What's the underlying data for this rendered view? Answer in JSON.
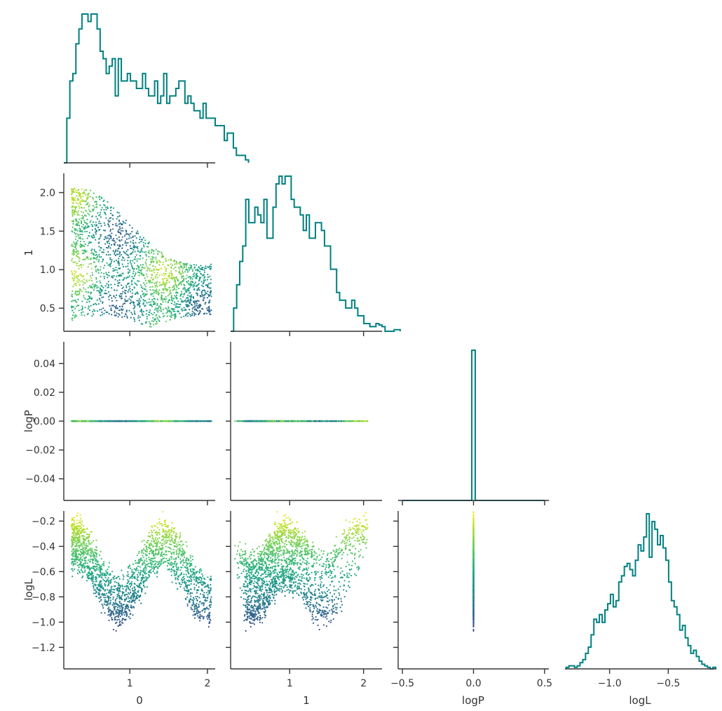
{
  "chart_data": {
    "type": "pairplot",
    "title": "",
    "variables": [
      "0",
      "1",
      "logP",
      "logL"
    ],
    "hist_color": "#008080",
    "scatter_colormap": "viridis",
    "color_variable": "logL",
    "ranges": {
      "0": [
        0.15,
        2.1
      ],
      "1": [
        0.2,
        2.25
      ],
      "logP": [
        -0.055,
        0.055
      ],
      "logP_hist_x": [
        -0.53,
        0.53
      ],
      "logL": [
        -1.37,
        -0.12
      ],
      "logL_hist_x": [
        -1.38,
        -0.09
      ]
    },
    "ticks": {
      "0": [
        "1",
        "2"
      ],
      "1_x": [
        "1",
        "2"
      ],
      "1_y": [
        "0.5",
        "1.0",
        "1.5",
        "2.0"
      ],
      "logP_x": [
        "−0.5",
        "0.0",
        "0.5"
      ],
      "logP_y": [
        "−0.04",
        "−0.02",
        "0.00",
        "0.02",
        "0.04"
      ],
      "logL_x": [
        "−1.0",
        "−0.5"
      ],
      "logL_y": [
        "−1.2",
        "−1.0",
        "−0.8",
        "−0.6",
        "−0.4",
        "−0.2"
      ]
    },
    "ticks_values": {
      "0": [
        1,
        2
      ],
      "1_x": [
        1,
        2
      ],
      "1_y": [
        0.5,
        1.0,
        1.5,
        2.0
      ],
      "logP_x": [
        -0.5,
        0.0,
        0.5
      ],
      "logP_y": [
        -0.04,
        -0.02,
        0.0,
        0.02,
        0.04
      ],
      "logL_x": [
        -1.0,
        -0.5
      ],
      "logL_y": [
        -1.2,
        -1.0,
        -0.8,
        -0.6,
        -0.4,
        -0.2
      ]
    },
    "histograms": {
      "0": {
        "bin_edges_start": 0.15,
        "bin_width": 0.039,
        "counts": [
          0,
          30,
          55,
          60,
          80,
          90,
          100,
          100,
          95,
          100,
          100,
          90,
          75,
          70,
          60,
          65,
          70,
          45,
          70,
          55,
          55,
          60,
          55,
          55,
          50,
          50,
          60,
          50,
          45,
          45,
          55,
          40,
          45,
          60,
          40,
          45,
          45,
          50,
          55,
          55,
          40,
          45,
          40,
          35,
          35,
          30,
          40,
          30,
          30,
          30,
          25,
          25,
          25,
          15,
          20,
          20,
          10,
          5,
          5,
          5,
          2
        ]
      },
      "1": {
        "bin_edges_start": 0.2,
        "bin_width": 0.041,
        "counts": [
          0,
          15,
          30,
          45,
          55,
          85,
          70,
          70,
          80,
          75,
          70,
          85,
          60,
          60,
          80,
          95,
          100,
          95,
          100,
          100,
          85,
          80,
          80,
          75,
          65,
          75,
          60,
          60,
          70,
          70,
          65,
          55,
          55,
          40,
          40,
          25,
          20,
          20,
          15,
          15,
          20,
          15,
          10,
          10,
          5,
          5,
          3,
          3,
          5,
          4,
          3,
          0,
          0,
          0,
          1,
          1
        ]
      },
      "logP": {
        "range": [
          -0.5,
          0.5
        ],
        "peak_at": 0.0,
        "counts_note": "all values equal 0"
      },
      "logL": {
        "bin_edges_start": -1.37,
        "bin_width": 0.0236,
        "counts": [
          1,
          2,
          2,
          1,
          2,
          4,
          6,
          10,
          14,
          22,
          32,
          30,
          35,
          30,
          38,
          42,
          48,
          40,
          44,
          56,
          60,
          66,
          68,
          64,
          60,
          70,
          80,
          76,
          85,
          100,
          72,
          95,
          90,
          80,
          86,
          78,
          70,
          56,
          44,
          40,
          35,
          25,
          28,
          20,
          15,
          10,
          12,
          8,
          5,
          3,
          2,
          1,
          0,
          1
        ]
      }
    },
    "scatter_points_count": 2000
  }
}
